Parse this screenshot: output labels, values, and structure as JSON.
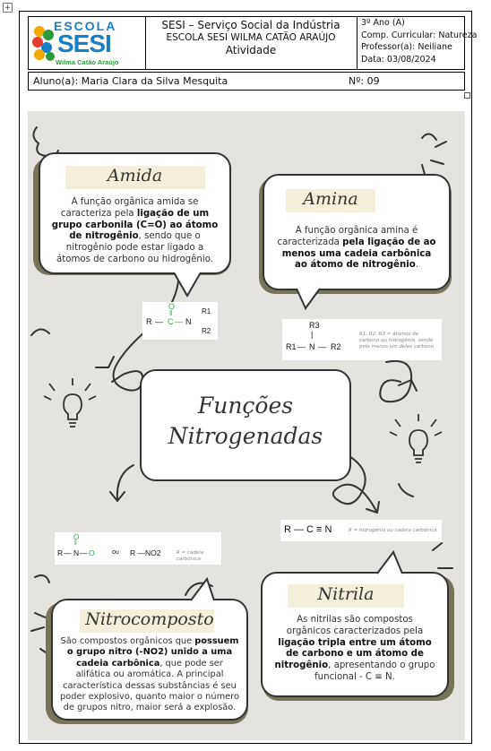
{
  "header": {
    "logo_line1": "ESCOLA",
    "logo_line2": "SESI",
    "logo_line3": "Wilma Catão Araújo",
    "institution": "SESI – Serviço Social da Indústria",
    "school": "ESCOLA SESI WILMA CATÃO ARAÚJO",
    "doc_type": "Atividade",
    "grade": "3º Ano (A)",
    "subject": "Comp. Curricular: Natureza",
    "teacher": "Professor(a): Neiliane",
    "date": "Data: 03/08/2024"
  },
  "student": {
    "name": "Aluno(a): Maria Clara da Silva Mesquita",
    "number": "Nº: 09"
  },
  "poster": {
    "center_title_line1": "Funções",
    "center_title_line2": "Nitrogenadas",
    "amida": {
      "title": "Amida",
      "text_parts": [
        "A função orgânica amida se caracteriza pela ",
        "ligação de um grupo carbonila (C=O) ao átomo de nitrogênio",
        ", sendo que o nitrogênio pode estar ligado a átomos de carbono ou hidrogênio."
      ],
      "formula": {
        "r": "R",
        "c": "C",
        "o": "O",
        "n": "N",
        "r1": "R1",
        "r2": "R2"
      }
    },
    "amina": {
      "title": "Amina",
      "text_parts": [
        "A função orgânica amina é caracterizada ",
        "pela ligação de ao menos uma cadeia carbônica ao átomo de nitrogênio",
        "."
      ],
      "formula": {
        "r1": "R1",
        "n": "N",
        "r2": "R2",
        "r3": "R3",
        "note": "R1, R2, R3 = átomos de carbono ou hidrogênio, sendo pelo menos um deles carbono"
      }
    },
    "nitrila": {
      "title": "Nitrila",
      "text_parts": [
        "As nitrilas são compostos orgânicos caracterizados pela ",
        "ligação tripla entre um átomo de carbono e um átomo de nitrogênio",
        ", apresentando o grupo funcional - C ≡ N."
      ],
      "formula": {
        "main": "R — C ≡ N",
        "note": "R = hidrogênio ou cadeia carbônica"
      }
    },
    "nitrocomposto": {
      "title": "Nitrocomposto",
      "text_parts": [
        "São compostos orgânicos que ",
        "possuem o grupo nitro (-NO2) unido a uma cadeia carbônica",
        ", que pode ser alifática ou aromática. A principal característica dessas substâncias é seu poder explosivo, quanto maior o número de grupos nitro, maior será a explosão."
      ],
      "formula": {
        "r": "R",
        "n": "N",
        "o_top": "O",
        "o_right": "O",
        "or": "ou",
        "alt": "R —NO2",
        "note": "R = cadeia carbônica"
      }
    }
  },
  "colors": {
    "poster_bg": "#e5e3df",
    "title_band": "#f4efdb",
    "shadow": "#78745a",
    "logo_blue": "#1a7ec4",
    "logo_green": "#2a9a3a"
  }
}
